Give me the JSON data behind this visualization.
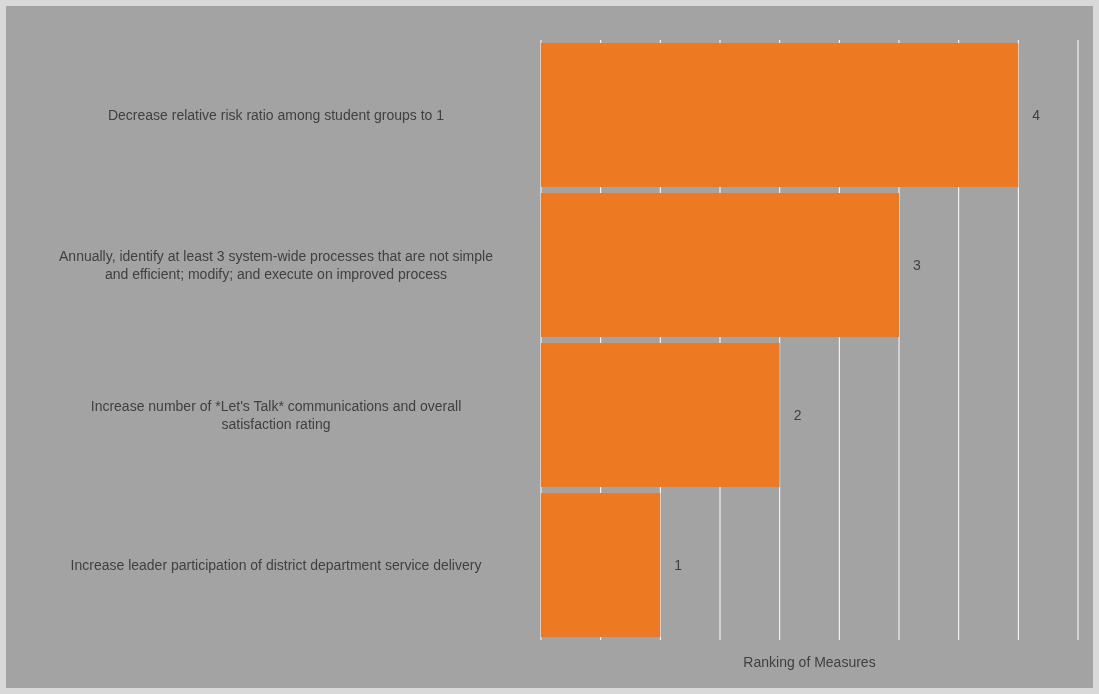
{
  "chart_data": {
    "type": "bar",
    "orientation": "horizontal",
    "xlabel": "Ranking of Measures",
    "categories": [
      "Decrease relative risk ratio among student groups to 1",
      "Annually, identify at least 3 system-wide processes that are not simple and efficient; modify; and execute on improved process",
      "Increase number of *Let's Talk* communications and overall satisfaction rating",
      "Increase leader participation of district department service delivery"
    ],
    "values": [
      4,
      3,
      2,
      1
    ],
    "color": "#ed7a22",
    "data_labels": true,
    "xlim": [
      0,
      4.5
    ],
    "xticks": [
      {
        "value": 0,
        "label": null
      },
      {
        "value": 0.5,
        "label": null
      },
      {
        "value": 1,
        "label": null
      },
      {
        "value": 1.5,
        "label": null
      },
      {
        "value": 2,
        "label": null
      },
      {
        "value": 2.5,
        "label": null
      },
      {
        "value": 3,
        "label": null
      },
      {
        "value": 3.5,
        "label": null
      },
      {
        "value": 4,
        "label": null
      },
      {
        "value": 4.5,
        "label": null
      }
    ],
    "grid": "x",
    "tick_labels": "y"
  }
}
